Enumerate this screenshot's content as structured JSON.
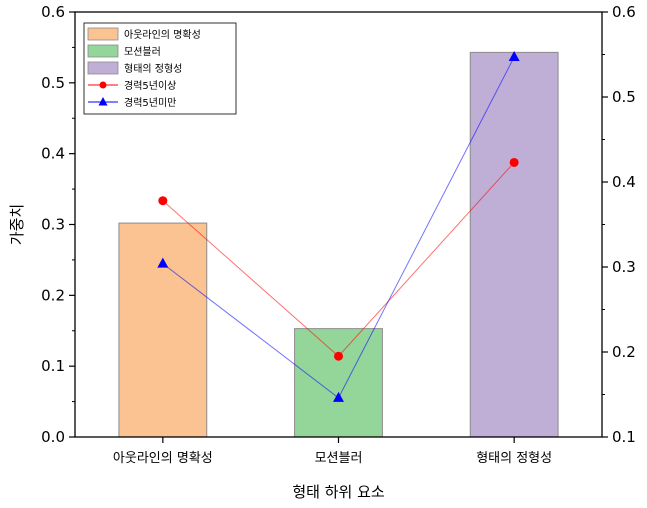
{
  "chart_data": {
    "type": "bar",
    "title": "",
    "xlabel": "형태 하위 요소",
    "ylabel": "가중치",
    "categories": [
      "아웃라인의 명확성",
      "모션블러",
      "형태의 정형성"
    ],
    "ylim": [
      0,
      0.6
    ],
    "yticks": [
      "0.0",
      "0.1",
      "0.2",
      "0.3",
      "0.4",
      "0.5",
      "0.6"
    ],
    "y2lim": [
      0.1,
      0.6
    ],
    "y2ticks": [
      "0.1",
      "0.2",
      "0.3",
      "0.4",
      "0.5",
      "0.6"
    ],
    "grid": false,
    "legend_position": "top-left",
    "bars": [
      {
        "name": "아웃라인의 명확성",
        "value": 0.302,
        "color": "#fac391"
      },
      {
        "name": "모션블러",
        "value": 0.153,
        "color": "#94d69a"
      },
      {
        "name": "형태의 정형성",
        "value": 0.543,
        "color": "#bfaed6"
      }
    ],
    "series": [
      {
        "name": "경력5년이상",
        "axis": "right",
        "values": [
          0.378,
          0.195,
          0.423
        ],
        "color": "#ff0000",
        "marker": "circle"
      },
      {
        "name": "경력5년미만",
        "axis": "right",
        "values": [
          0.304,
          0.146,
          0.547
        ],
        "color": "#0000ff",
        "marker": "triangle"
      }
    ]
  }
}
